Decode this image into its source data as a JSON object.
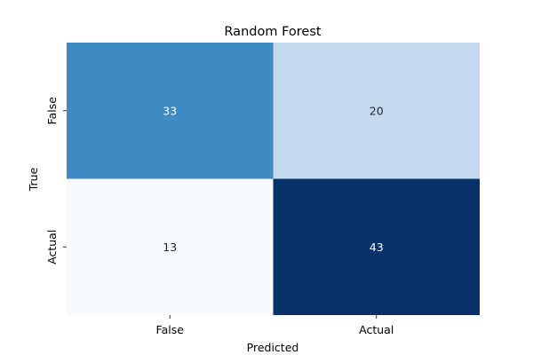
{
  "chart_data": {
    "type": "heatmap",
    "title": "Random Forest",
    "xlabel": "Predicted",
    "ylabel": "True",
    "x_categories": [
      "False",
      "Actual"
    ],
    "y_categories": [
      "False",
      "Actual"
    ],
    "values": [
      [
        33,
        20
      ],
      [
        13,
        43
      ]
    ],
    "colormap": "Blues",
    "colorbar": false,
    "vmin": 13,
    "vmax": 43,
    "colors": {
      "low": "#f7fbff",
      "mid_low": "#c6dbef",
      "mid": "#6baed6",
      "high": "#08306b",
      "text_dark": "#262626",
      "text_light": "#ffffff"
    }
  }
}
